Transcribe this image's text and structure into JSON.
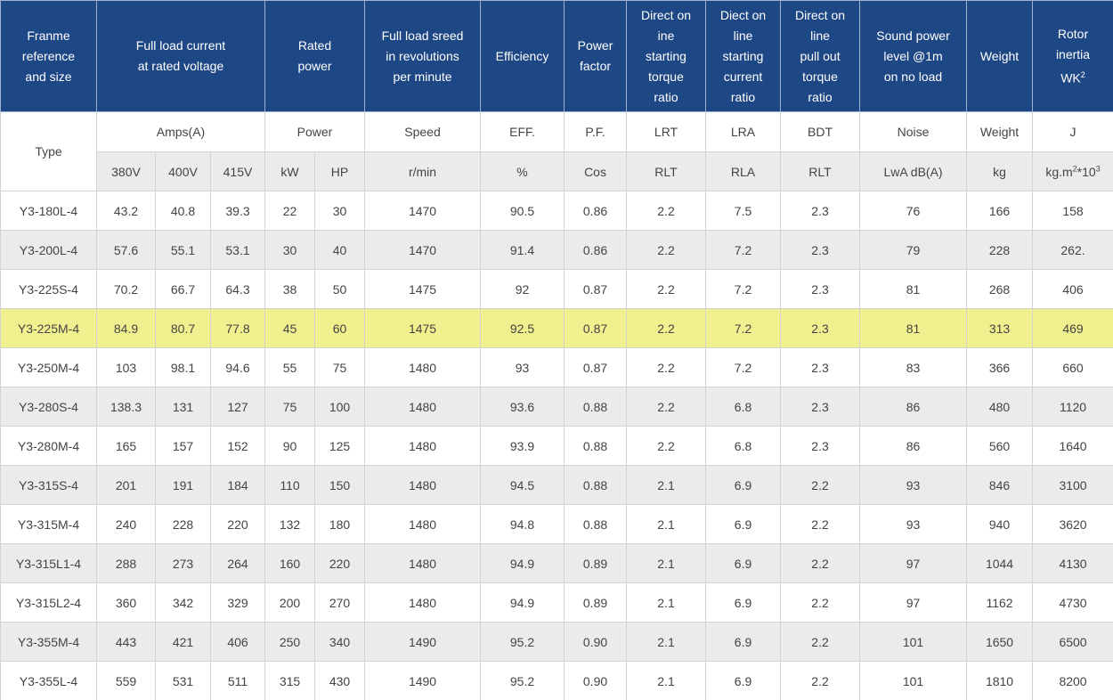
{
  "header": {
    "groups": [
      {
        "lines": [
          "Franme",
          "reference",
          "and size"
        ],
        "span": 1
      },
      {
        "lines": [
          "Full load current",
          "at rated voltage"
        ],
        "span": 3
      },
      {
        "lines": [
          "Rated",
          "power"
        ],
        "span": 2
      },
      {
        "lines": [
          "Full load sreed",
          "in revolutions",
          "per minute"
        ],
        "span": 1
      },
      {
        "lines": [
          "Efficiency"
        ],
        "span": 1
      },
      {
        "lines": [
          "Power",
          "factor"
        ],
        "span": 1
      },
      {
        "lines": [
          "Direct on",
          "ine",
          "starting",
          "torque",
          "ratio"
        ],
        "span": 1
      },
      {
        "lines": [
          "Diect on",
          "line",
          "starting",
          "current",
          "ratio"
        ],
        "span": 1
      },
      {
        "lines": [
          "Direct on",
          "line",
          "pull out",
          "torque",
          "ratio"
        ],
        "span": 1
      },
      {
        "lines": [
          "Sound power",
          "level @1m",
          "on no load"
        ],
        "span": 1
      },
      {
        "lines": [
          "Weight"
        ],
        "span": 1
      },
      {
        "lines": [
          "Rotor",
          "inertia",
          [
            {
              "t": "WK"
            },
            {
              "sup": "2"
            }
          ]
        ],
        "span": 1
      }
    ]
  },
  "units": {
    "type": "Type",
    "groups": [
      {
        "text": "Amps(A)",
        "span": 3
      },
      {
        "text": "Power",
        "span": 2
      },
      {
        "text": "Speed",
        "span": 1
      },
      {
        "text": "EFF.",
        "span": 1
      },
      {
        "text": "P.F.",
        "span": 1
      },
      {
        "text": "LRT",
        "span": 1
      },
      {
        "text": "LRA",
        "span": 1
      },
      {
        "text": "BDT",
        "span": 1
      },
      {
        "text": "Noise",
        "span": 1
      },
      {
        "text": "Weight",
        "span": 1
      },
      {
        "text": "J",
        "span": 1
      }
    ]
  },
  "subunits": [
    "380V",
    "400V",
    "415V",
    "kW",
    "HP",
    "r/min",
    "%",
    "Cos",
    "RLT",
    "RLA",
    "RLT",
    "LwA dB(A)",
    "kg",
    [
      {
        "t": "kg.m"
      },
      {
        "sup": "2"
      },
      {
        "t": "*10"
      },
      {
        "sup": "3"
      }
    ]
  ],
  "rows": [
    [
      "Y3-180L-4",
      "43.2",
      "40.8",
      "39.3",
      "22",
      "30",
      "1470",
      "90.5",
      "0.86",
      "2.2",
      "7.5",
      "2.3",
      "76",
      "166",
      "158"
    ],
    [
      "Y3-200L-4",
      "57.6",
      "55.1",
      "53.1",
      "30",
      "40",
      "1470",
      "91.4",
      "0.86",
      "2.2",
      "7.2",
      "2.3",
      "79",
      "228",
      "262."
    ],
    [
      "Y3-225S-4",
      "70.2",
      "66.7",
      "64.3",
      "38",
      "50",
      "1475",
      "92",
      "0.87",
      "2.2",
      "7.2",
      "2.3",
      "81",
      "268",
      "406"
    ],
    [
      "Y3-225M-4",
      "84.9",
      "80.7",
      "77.8",
      "45",
      "60",
      "1475",
      "92.5",
      "0.87",
      "2.2",
      "7.2",
      "2.3",
      "81",
      "313",
      "469"
    ],
    [
      "Y3-250M-4",
      "103",
      "98.1",
      "94.6",
      "55",
      "75",
      "1480",
      "93",
      "0.87",
      "2.2",
      "7.2",
      "2.3",
      "83",
      "366",
      "660"
    ],
    [
      "Y3-280S-4",
      "138.3",
      "131",
      "127",
      "75",
      "100",
      "1480",
      "93.6",
      "0.88",
      "2.2",
      "6.8",
      "2.3",
      "86",
      "480",
      "1120"
    ],
    [
      "Y3-280M-4",
      "165",
      "157",
      "152",
      "90",
      "125",
      "1480",
      "93.9",
      "0.88",
      "2.2",
      "6.8",
      "2.3",
      "86",
      "560",
      "1640"
    ],
    [
      "Y3-315S-4",
      "201",
      "191",
      "184",
      "110",
      "150",
      "1480",
      "94.5",
      "0.88",
      "2.1",
      "6.9",
      "2.2",
      "93",
      "846",
      "3100"
    ],
    [
      "Y3-315M-4",
      "240",
      "228",
      "220",
      "132",
      "180",
      "1480",
      "94.8",
      "0.88",
      "2.1",
      "6.9",
      "2.2",
      "93",
      "940",
      "3620"
    ],
    [
      "Y3-315L1-4",
      "288",
      "273",
      "264",
      "160",
      "220",
      "1480",
      "94.9",
      "0.89",
      "2.1",
      "6.9",
      "2.2",
      "97",
      "1044",
      "4130"
    ],
    [
      "Y3-315L2-4",
      "360",
      "342",
      "329",
      "200",
      "270",
      "1480",
      "94.9",
      "0.89",
      "2.1",
      "6.9",
      "2.2",
      "97",
      "1162",
      "4730"
    ],
    [
      "Y3-355M-4",
      "443",
      "421",
      "406",
      "250",
      "340",
      "1490",
      "95.2",
      "0.90",
      "2.1",
      "6.9",
      "2.2",
      "101",
      "1650",
      "6500"
    ],
    [
      "Y3-355L-4",
      "559",
      "531",
      "511",
      "315",
      "430",
      "1490",
      "95.2",
      "0.90",
      "2.1",
      "6.9",
      "2.2",
      "101",
      "1810",
      "8200"
    ]
  ],
  "highlighted_row": 3
}
